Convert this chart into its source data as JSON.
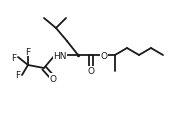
{
  "bg_color": "#ffffff",
  "line_color": "#1a1a1a",
  "line_width": 1.3,
  "font_size": 6.5,
  "label_color": "#1a1a1a",
  "figsize": [
    1.76,
    1.14
  ],
  "dpi": 100,
  "xlim": [
    0,
    176
  ],
  "ylim": [
    0,
    114
  ]
}
